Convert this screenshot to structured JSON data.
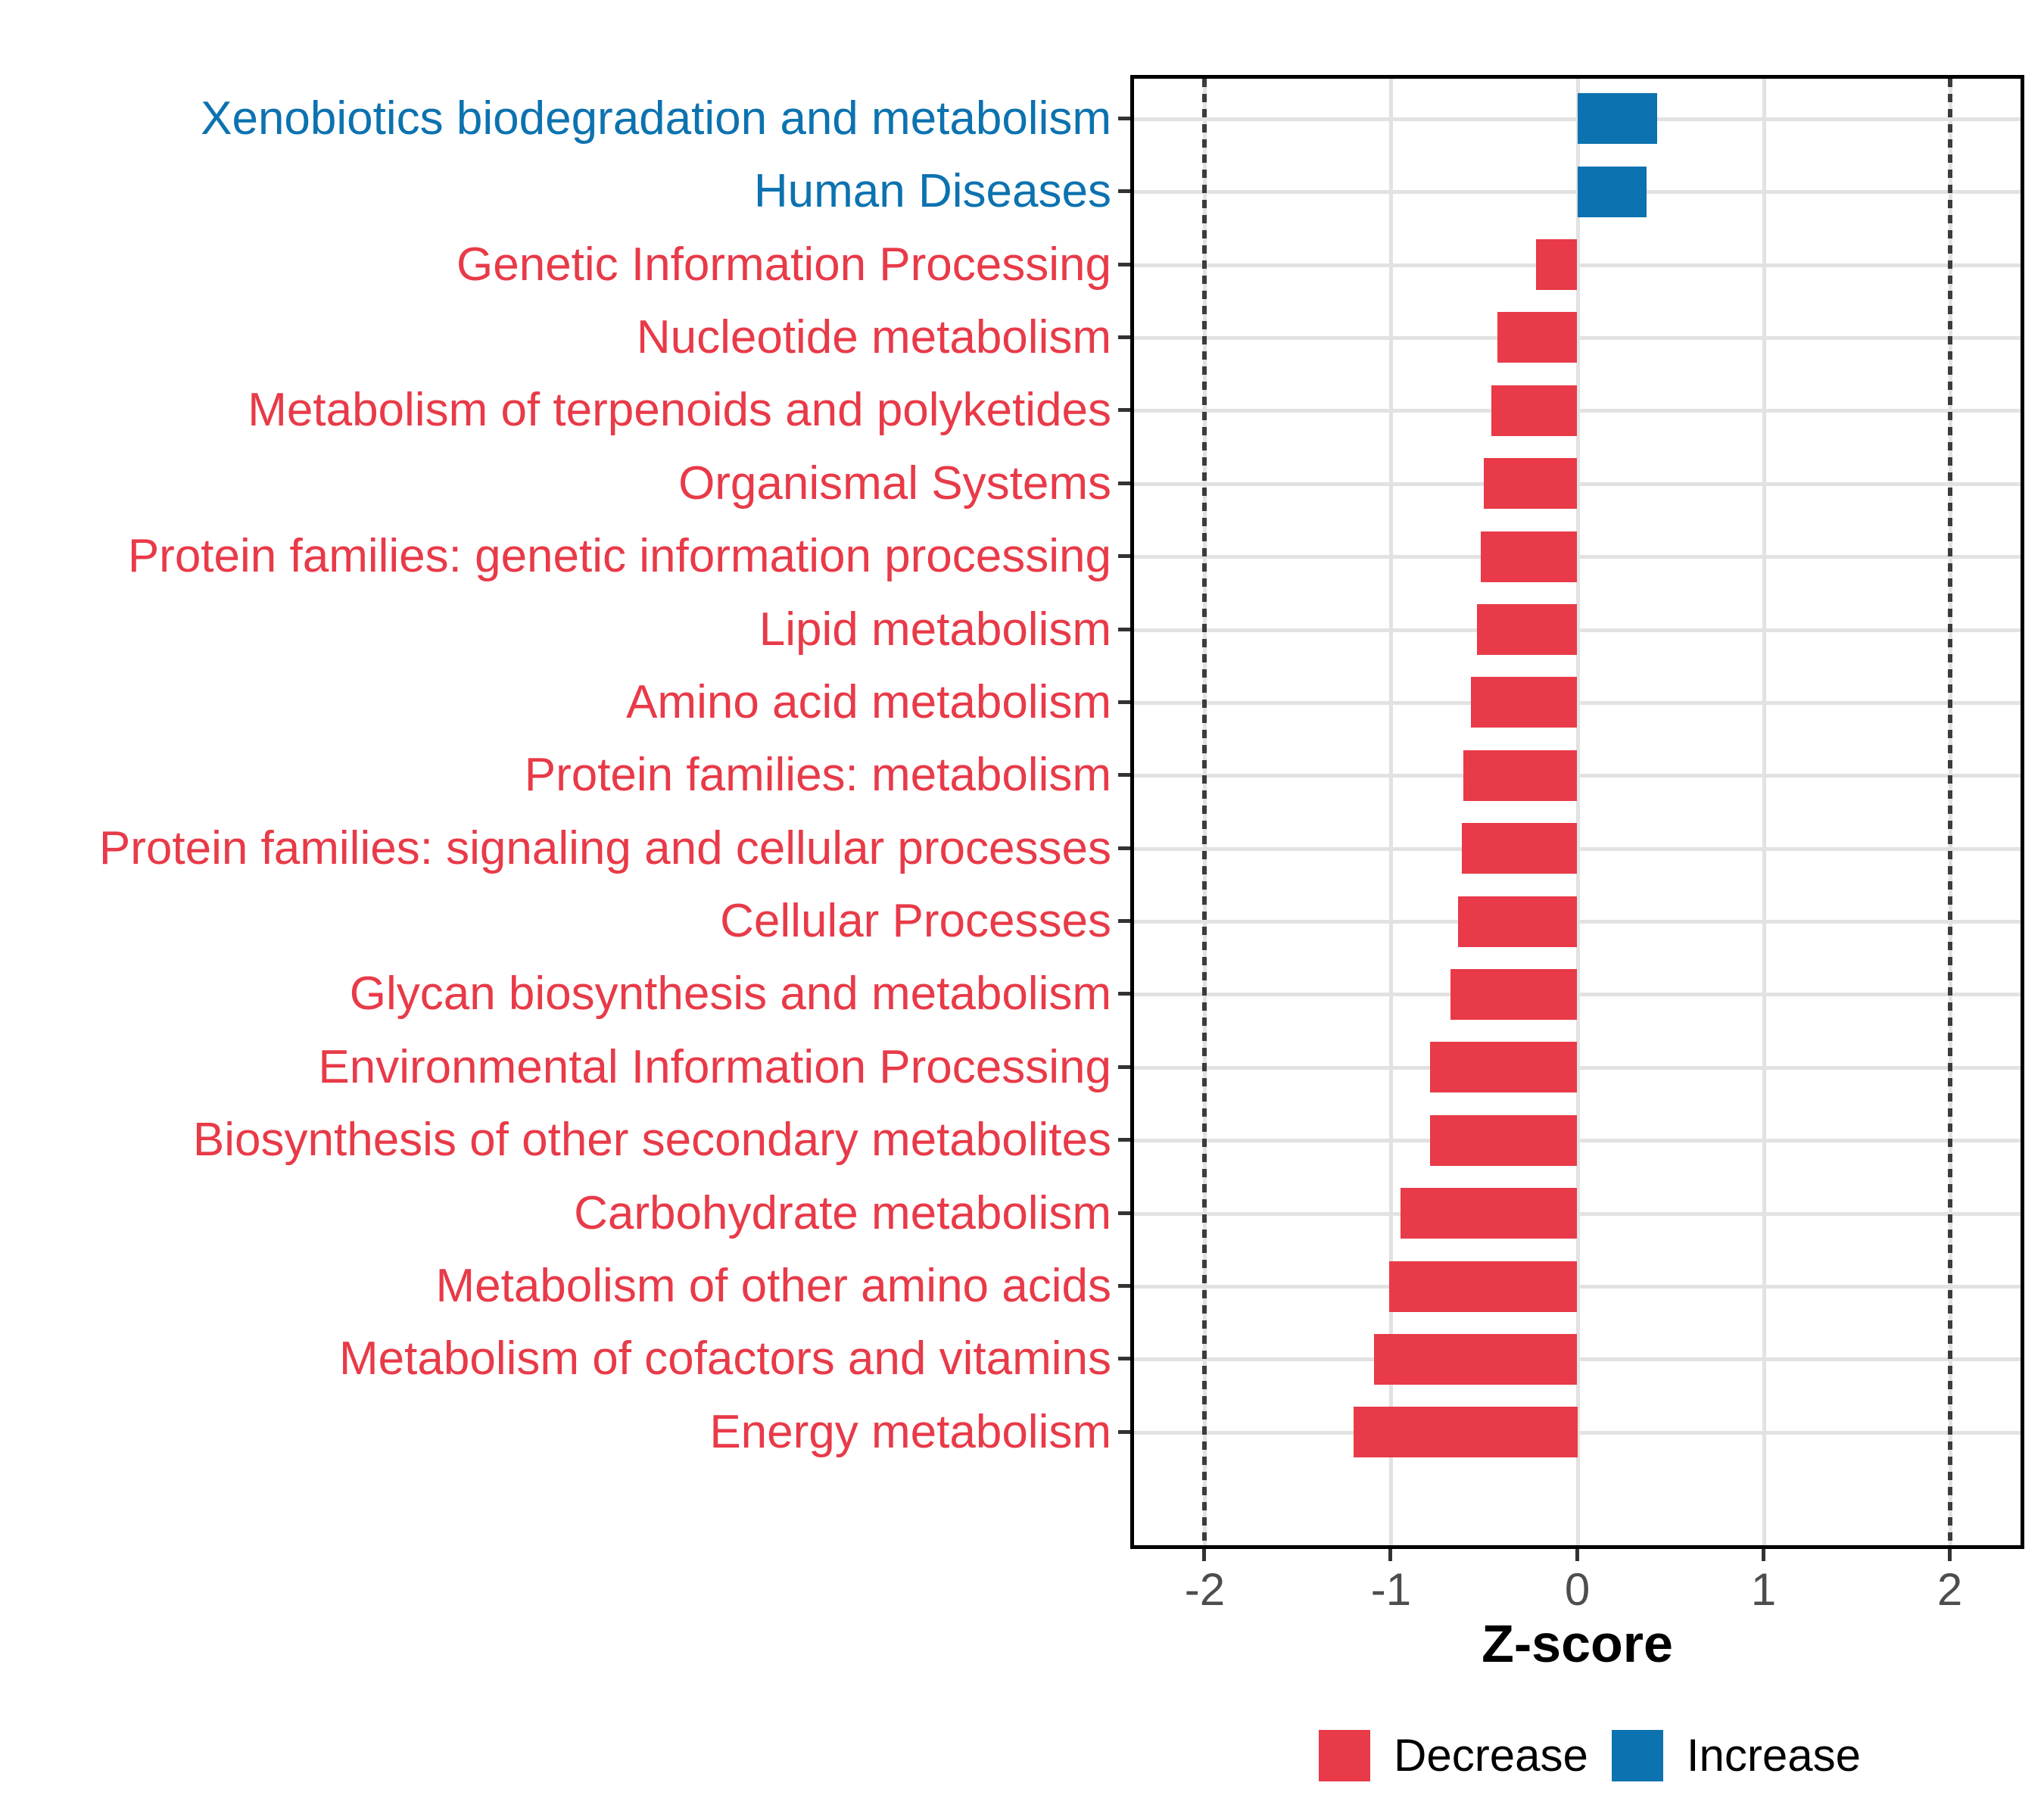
{
  "figure": {
    "xlabel": "Z-score",
    "legend": {
      "decrease_label": "Decrease",
      "increase_label": "Increase"
    }
  },
  "chart_data": {
    "type": "bar",
    "orientation": "horizontal",
    "title": "",
    "xlabel": "Z-score",
    "ylabel": "",
    "xlim": [
      -2.4,
      2.4
    ],
    "x_ticks": [
      "-2",
      "-1",
      "0",
      "1",
      "2"
    ],
    "x_tick_values": [
      -2,
      -1,
      0,
      1,
      2
    ],
    "reference_lines_x": [
      -2,
      2
    ],
    "grid": true,
    "legend_position": "bottom",
    "legend_entries": [
      "Decrease",
      "Increase"
    ],
    "colors": {
      "Decrease": "#e83a48",
      "Increase": "#0c72b0"
    },
    "items": [
      {
        "category": "Xenobiotics biodegradation and metabolism",
        "value": 0.43,
        "group": "Increase"
      },
      {
        "category": "Human Diseases",
        "value": 0.37,
        "group": "Increase"
      },
      {
        "category": "Genetic Information Processing",
        "value": -0.22,
        "group": "Decrease"
      },
      {
        "category": "Nucleotide metabolism",
        "value": -0.43,
        "group": "Decrease"
      },
      {
        "category": "Metabolism of terpenoids and polyketides",
        "value": -0.46,
        "group": "Decrease"
      },
      {
        "category": "Organismal Systems",
        "value": -0.5,
        "group": "Decrease"
      },
      {
        "category": "Protein families: genetic information processing",
        "value": -0.52,
        "group": "Decrease"
      },
      {
        "category": "Lipid metabolism",
        "value": -0.54,
        "group": "Decrease"
      },
      {
        "category": "Amino acid metabolism",
        "value": -0.57,
        "group": "Decrease"
      },
      {
        "category": "Protein families: metabolism",
        "value": -0.61,
        "group": "Decrease"
      },
      {
        "category": "Protein families: signaling and cellular processes",
        "value": -0.62,
        "group": "Decrease"
      },
      {
        "category": "Cellular Processes",
        "value": -0.64,
        "group": "Decrease"
      },
      {
        "category": "Glycan biosynthesis and metabolism",
        "value": -0.68,
        "group": "Decrease"
      },
      {
        "category": "Environmental Information Processing",
        "value": -0.79,
        "group": "Decrease"
      },
      {
        "category": "Biosynthesis of other secondary metabolites",
        "value": -0.79,
        "group": "Decrease"
      },
      {
        "category": "Carbohydrate metabolism",
        "value": -0.95,
        "group": "Decrease"
      },
      {
        "category": "Metabolism of other amino acids",
        "value": -1.01,
        "group": "Decrease"
      },
      {
        "category": "Metabolism of cofactors and vitamins",
        "value": -1.09,
        "group": "Decrease"
      },
      {
        "category": "Energy metabolism",
        "value": -1.2,
        "group": "Decrease"
      }
    ]
  }
}
